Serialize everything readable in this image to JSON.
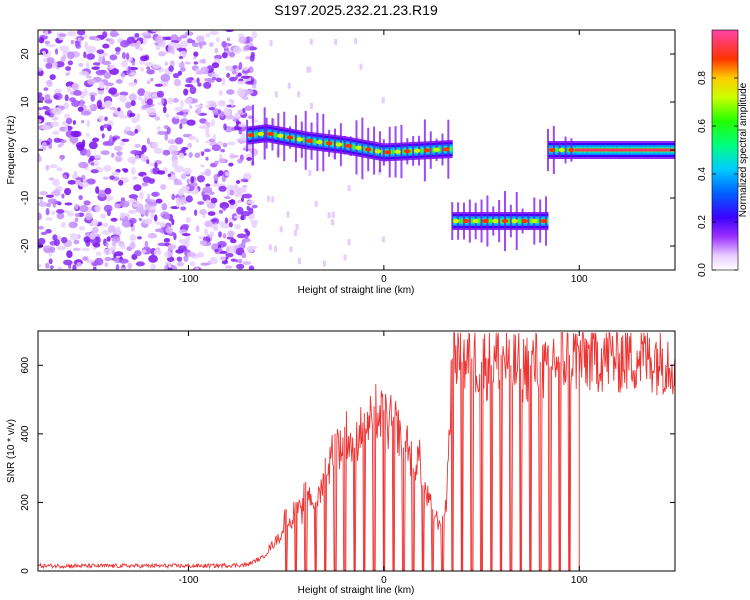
{
  "title": "S197.2025.232.21.23.R19",
  "colorbar": {
    "label": "Normalized spectral amplitude",
    "ticks": [
      "0.0",
      "0.2",
      "0.4",
      "0.6",
      "0.8"
    ],
    "tick_values": [
      0.0,
      0.2,
      0.4,
      0.6,
      0.8
    ],
    "range": [
      0,
      1
    ]
  },
  "chart_data": [
    {
      "type": "heatmap",
      "name": "spectrogram",
      "xlabel": "Height of straight line (km)",
      "ylabel": "Frequency (Hz)",
      "xlim": [
        -177,
        149
      ],
      "ylim": [
        -25,
        25
      ],
      "xticks": [
        -100,
        0,
        100
      ],
      "xtick_labels": [
        "-100",
        "0",
        "100"
      ],
      "yticks": [
        -20,
        -10,
        0,
        10,
        20
      ],
      "ytick_labels": [
        "-20",
        "-10",
        "0",
        "10",
        "20"
      ],
      "noise_region_x": [
        -177,
        -70
      ],
      "tone_segments": [
        {
          "x_start": -70,
          "x_end": -60,
          "freq_start": 3,
          "freq_end": 3.5
        },
        {
          "x_start": -60,
          "x_end": -40,
          "freq_start": 3.5,
          "freq_end": 2
        },
        {
          "x_start": -40,
          "x_end": -20,
          "freq_start": 2,
          "freq_end": 1
        },
        {
          "x_start": -20,
          "x_end": 0,
          "freq_start": 1,
          "freq_end": -0.5
        },
        {
          "x_start": 0,
          "x_end": 35,
          "freq_start": -0.5,
          "freq_end": 0.2
        },
        {
          "x_start": 35,
          "x_end": 84,
          "freq_start": -14.8,
          "freq_end": -14.8
        },
        {
          "x_start": 84,
          "x_end": 98,
          "freq_start": 0,
          "freq_end": 0
        },
        {
          "x_start": 98,
          "x_end": 149,
          "freq_start": 0,
          "freq_end": 0
        }
      ]
    },
    {
      "type": "line",
      "name": "snr",
      "xlabel": "Height of straight line (km)",
      "ylabel": "SNR (10 * v/v)",
      "xlim": [
        -177,
        149
      ],
      "ylim": [
        0,
        700
      ],
      "xticks": [
        -100,
        0,
        100
      ],
      "xtick_labels": [
        "-100",
        "0",
        "100"
      ],
      "yticks": [
        0,
        200,
        400,
        600
      ],
      "ytick_labels": [
        "0",
        "200",
        "400",
        "600"
      ],
      "series": [
        {
          "name": "SNR",
          "color": "#ee3333",
          "x": [
            -177,
            -150,
            -120,
            -90,
            -70,
            -62,
            -58,
            -55,
            -52,
            -50,
            -48,
            -45,
            -42,
            -40,
            -38,
            -35,
            -32,
            -30,
            -28,
            -25,
            -22,
            -20,
            -18,
            -15,
            -12,
            -10,
            -8,
            -5,
            -2,
            0,
            2,
            5,
            8,
            10,
            12,
            15,
            18,
            20,
            22,
            25,
            28,
            30,
            32,
            35,
            37,
            40,
            45,
            50,
            55,
            60,
            65,
            70,
            75,
            80,
            84,
            86,
            88,
            90,
            95,
            100,
            110,
            120,
            130,
            140,
            149
          ],
          "y": [
            15,
            15,
            15,
            15,
            18,
            40,
            70,
            90,
            110,
            180,
            130,
            200,
            160,
            260,
            220,
            200,
            240,
            330,
            300,
            400,
            350,
            420,
            380,
            360,
            420,
            460,
            420,
            480,
            440,
            470,
            420,
            450,
            400,
            360,
            380,
            300,
            340,
            250,
            220,
            180,
            140,
            160,
            200,
            620,
            650,
            610,
            620,
            610,
            600,
            630,
            600,
            590,
            600,
            610,
            560,
            630,
            620,
            610,
            630,
            620,
            630,
            625,
            630,
            625,
            620
          ]
        }
      ],
      "dropouts_x": [
        -50,
        -45,
        -40,
        -35,
        -30,
        -25,
        -20,
        -15,
        -10,
        -5,
        0,
        5,
        10,
        15,
        20,
        25,
        30,
        35,
        40,
        45,
        50,
        55,
        60,
        65,
        70,
        75,
        80,
        85,
        90,
        95,
        100
      ]
    }
  ]
}
